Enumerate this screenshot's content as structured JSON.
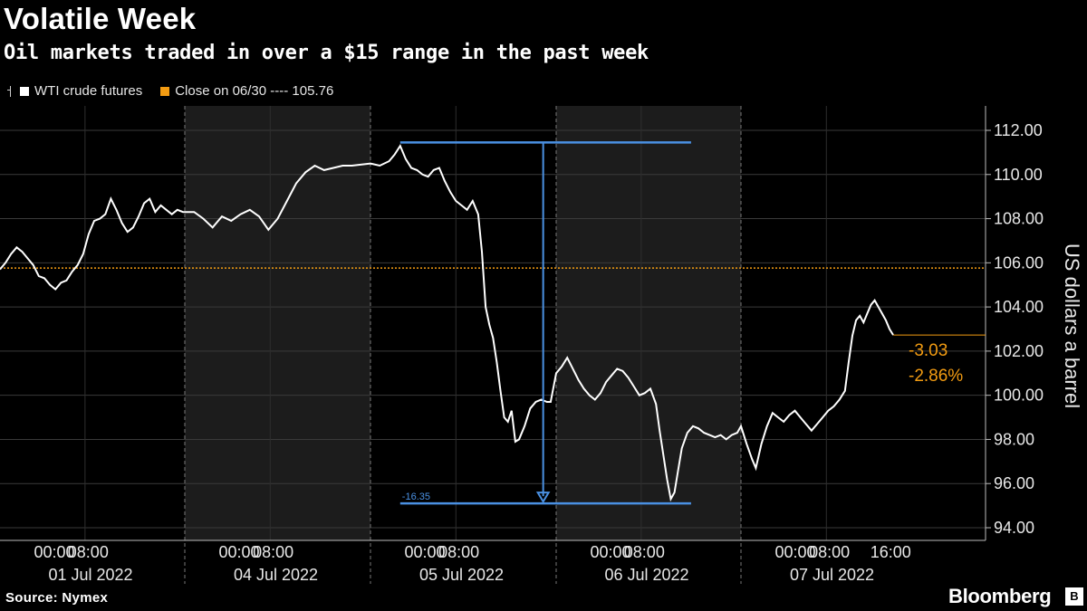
{
  "header": {
    "title": "Volatile Week",
    "subtitle": "Oil markets traded in over a $15 range in the past week"
  },
  "legend": {
    "series_label": "WTI crude futures",
    "close_label": "Close on 06/30 ---- 105.76"
  },
  "footer": {
    "source": "Source: Nymex",
    "brand": "Bloomberg"
  },
  "colors": {
    "background": "#000000",
    "shaded_band": "#1c1c1c",
    "series": "#ffffff",
    "close_line": "#f39c12",
    "range_marker": "#4a90e2",
    "change_text": "#f39c12"
  },
  "chart_data": {
    "type": "line",
    "title": "Volatile Week",
    "subtitle": "Oil markets traded in over a $15 range in the past week",
    "ylabel": "US dollars a barrel",
    "ylim": [
      94,
      112
    ],
    "yticks": [
      "94.00",
      "96.00",
      "98.00",
      "100.00",
      "102.00",
      "104.00",
      "106.00",
      "108.00",
      "110.00",
      "112.00"
    ],
    "x_time_labels": [
      "00:00",
      "08:00",
      "00:00",
      "08:00",
      "00:00",
      "08:00",
      "00:00",
      "08:00",
      "00:00",
      "08:00",
      "16:00"
    ],
    "x_date_labels": [
      "01 Jul 2022",
      "04 Jul 2022",
      "05 Jul 2022",
      "06 Jul 2022",
      "07 Jul 2022"
    ],
    "shaded_days": [
      "04 Jul 2022",
      "06 Jul 2022"
    ],
    "close_reference": {
      "label": "Close on 06/30",
      "value": 105.76
    },
    "range_annotation": {
      "high": 111.45,
      "low": 95.1,
      "label": "-16.35"
    },
    "last_value": 102.73,
    "change_labels": [
      "-3.03",
      "-2.86%"
    ],
    "series": [
      {
        "name": "WTI crude futures",
        "points": [
          [
            0.0,
            105.7
          ],
          [
            0.03,
            106.0
          ],
          [
            0.06,
            106.4
          ],
          [
            0.09,
            106.7
          ],
          [
            0.12,
            106.5
          ],
          [
            0.15,
            106.2
          ],
          [
            0.18,
            105.9
          ],
          [
            0.21,
            105.4
          ],
          [
            0.24,
            105.3
          ],
          [
            0.27,
            105.0
          ],
          [
            0.3,
            104.8
          ],
          [
            0.33,
            105.1
          ],
          [
            0.36,
            105.2
          ],
          [
            0.39,
            105.6
          ],
          [
            0.42,
            105.9
          ],
          [
            0.45,
            106.4
          ],
          [
            0.48,
            107.3
          ],
          [
            0.51,
            107.9
          ],
          [
            0.54,
            108.0
          ],
          [
            0.57,
            108.2
          ],
          [
            0.6,
            108.9
          ],
          [
            0.63,
            108.4
          ],
          [
            0.66,
            107.8
          ],
          [
            0.69,
            107.4
          ],
          [
            0.72,
            107.6
          ],
          [
            0.75,
            108.1
          ],
          [
            0.78,
            108.7
          ],
          [
            0.81,
            108.9
          ],
          [
            0.84,
            108.3
          ],
          [
            0.87,
            108.6
          ],
          [
            0.9,
            108.4
          ],
          [
            0.93,
            108.2
          ],
          [
            0.96,
            108.4
          ],
          [
            0.99,
            108.3
          ],
          [
            1.0,
            108.3
          ],
          [
            1.05,
            108.3
          ],
          [
            1.1,
            108.0
          ],
          [
            1.15,
            107.6
          ],
          [
            1.2,
            108.1
          ],
          [
            1.25,
            107.9
          ],
          [
            1.3,
            108.2
          ],
          [
            1.35,
            108.4
          ],
          [
            1.4,
            108.1
          ],
          [
            1.45,
            107.5
          ],
          [
            1.5,
            108.0
          ],
          [
            1.55,
            108.8
          ],
          [
            1.6,
            109.6
          ],
          [
            1.65,
            110.1
          ],
          [
            1.7,
            110.4
          ],
          [
            1.75,
            110.2
          ],
          [
            1.8,
            110.3
          ],
          [
            1.85,
            110.4
          ],
          [
            1.9,
            110.4
          ],
          [
            2.0,
            110.5
          ],
          [
            2.05,
            110.4
          ],
          [
            2.1,
            110.6
          ],
          [
            2.13,
            110.9
          ],
          [
            2.16,
            111.3
          ],
          [
            2.19,
            110.7
          ],
          [
            2.22,
            110.3
          ],
          [
            2.25,
            110.2
          ],
          [
            2.28,
            110.0
          ],
          [
            2.31,
            109.9
          ],
          [
            2.34,
            110.2
          ],
          [
            2.37,
            110.3
          ],
          [
            2.4,
            109.7
          ],
          [
            2.43,
            109.2
          ],
          [
            2.46,
            108.8
          ],
          [
            2.49,
            108.6
          ],
          [
            2.52,
            108.4
          ],
          [
            2.55,
            108.8
          ],
          [
            2.58,
            108.2
          ],
          [
            2.6,
            106.5
          ],
          [
            2.62,
            104.0
          ],
          [
            2.64,
            103.2
          ],
          [
            2.66,
            102.6
          ],
          [
            2.68,
            101.5
          ],
          [
            2.7,
            100.2
          ],
          [
            2.72,
            99.0
          ],
          [
            2.74,
            98.8
          ],
          [
            2.76,
            99.3
          ],
          [
            2.78,
            97.9
          ],
          [
            2.8,
            98.0
          ],
          [
            2.83,
            98.6
          ],
          [
            2.86,
            99.4
          ],
          [
            2.89,
            99.7
          ],
          [
            2.92,
            99.8
          ],
          [
            2.95,
            99.7
          ],
          [
            2.97,
            99.7
          ],
          [
            3.0,
            101.0
          ],
          [
            3.03,
            101.3
          ],
          [
            3.06,
            101.7
          ],
          [
            3.09,
            101.2
          ],
          [
            3.12,
            100.7
          ],
          [
            3.15,
            100.3
          ],
          [
            3.18,
            100.0
          ],
          [
            3.21,
            99.8
          ],
          [
            3.24,
            100.1
          ],
          [
            3.27,
            100.6
          ],
          [
            3.3,
            100.9
          ],
          [
            3.33,
            101.2
          ],
          [
            3.36,
            101.1
          ],
          [
            3.39,
            100.8
          ],
          [
            3.42,
            100.4
          ],
          [
            3.45,
            100.0
          ],
          [
            3.48,
            100.1
          ],
          [
            3.51,
            100.3
          ],
          [
            3.54,
            99.6
          ],
          [
            3.56,
            98.4
          ],
          [
            3.58,
            97.3
          ],
          [
            3.6,
            96.2
          ],
          [
            3.62,
            95.3
          ],
          [
            3.64,
            95.6
          ],
          [
            3.66,
            96.6
          ],
          [
            3.68,
            97.6
          ],
          [
            3.71,
            98.3
          ],
          [
            3.74,
            98.6
          ],
          [
            3.77,
            98.5
          ],
          [
            3.8,
            98.3
          ],
          [
            3.83,
            98.2
          ],
          [
            3.86,
            98.1
          ],
          [
            3.89,
            98.2
          ],
          [
            3.92,
            98.0
          ],
          [
            3.95,
            98.2
          ],
          [
            3.98,
            98.3
          ],
          [
            4.0,
            98.6
          ],
          [
            4.03,
            97.8
          ],
          [
            4.06,
            97.1
          ],
          [
            4.08,
            96.7
          ],
          [
            4.11,
            97.8
          ],
          [
            4.14,
            98.6
          ],
          [
            4.17,
            99.2
          ],
          [
            4.2,
            99.0
          ],
          [
            4.23,
            98.8
          ],
          [
            4.26,
            99.1
          ],
          [
            4.29,
            99.3
          ],
          [
            4.32,
            99.0
          ],
          [
            4.35,
            98.7
          ],
          [
            4.38,
            98.4
          ],
          [
            4.41,
            98.7
          ],
          [
            4.44,
            99.0
          ],
          [
            4.47,
            99.3
          ],
          [
            4.5,
            99.5
          ],
          [
            4.53,
            99.8
          ],
          [
            4.56,
            100.2
          ],
          [
            4.58,
            101.5
          ],
          [
            4.6,
            102.7
          ],
          [
            4.62,
            103.4
          ],
          [
            4.64,
            103.6
          ],
          [
            4.66,
            103.3
          ],
          [
            4.68,
            103.7
          ],
          [
            4.7,
            104.1
          ],
          [
            4.72,
            104.3
          ],
          [
            4.74,
            104.0
          ],
          [
            4.76,
            103.7
          ],
          [
            4.78,
            103.4
          ],
          [
            4.8,
            103.0
          ],
          [
            4.82,
            102.73
          ]
        ]
      }
    ]
  }
}
